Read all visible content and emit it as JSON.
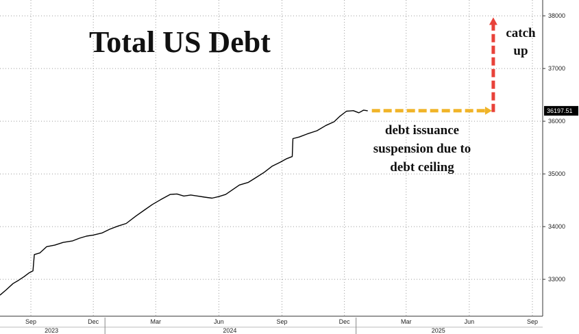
{
  "chart_data": {
    "type": "line",
    "title": "Total US Debt",
    "xlabel": "",
    "ylabel": "",
    "x_ticks": [
      "Sep",
      "Dec",
      "Mar",
      "Jun",
      "Sep",
      "Dec",
      "Mar",
      "Jun",
      "Sep"
    ],
    "years": [
      "2023",
      "2024",
      "2025"
    ],
    "y_ticks": [
      33000,
      34000,
      35000,
      36000,
      37000,
      38000
    ],
    "ylim": [
      32300,
      38300
    ],
    "xlim": [
      "2023-08-01",
      "2025-09-30"
    ],
    "grid": true,
    "y_axis_side": "right",
    "last_value_label": "36197.51",
    "series": [
      {
        "color": "#000000",
        "points": [
          [
            "2023-08-01",
            32700
          ],
          [
            "2023-08-10",
            32800
          ],
          [
            "2023-08-20",
            32920
          ],
          [
            "2023-08-28",
            32980
          ],
          [
            "2023-09-05",
            33050
          ],
          [
            "2023-09-12",
            33120
          ],
          [
            "2023-09-18",
            33160
          ],
          [
            "2023-09-20",
            33470
          ],
          [
            "2023-09-28",
            33500
          ],
          [
            "2023-10-08",
            33620
          ],
          [
            "2023-10-20",
            33650
          ],
          [
            "2023-11-01",
            33700
          ],
          [
            "2023-11-15",
            33730
          ],
          [
            "2023-11-25",
            33780
          ],
          [
            "2023-12-05",
            33820
          ],
          [
            "2023-12-15",
            33840
          ],
          [
            "2023-12-28",
            33880
          ],
          [
            "2024-01-08",
            33950
          ],
          [
            "2024-01-20",
            34010
          ],
          [
            "2024-02-01",
            34060
          ],
          [
            "2024-02-15",
            34200
          ],
          [
            "2024-02-28",
            34320
          ],
          [
            "2024-03-10",
            34420
          ],
          [
            "2024-03-22",
            34510
          ],
          [
            "2024-04-05",
            34610
          ],
          [
            "2024-04-15",
            34620
          ],
          [
            "2024-04-25",
            34580
          ],
          [
            "2024-05-05",
            34600
          ],
          [
            "2024-05-15",
            34580
          ],
          [
            "2024-05-25",
            34560
          ],
          [
            "2024-06-05",
            34540
          ],
          [
            "2024-06-15",
            34570
          ],
          [
            "2024-06-25",
            34610
          ],
          [
            "2024-07-05",
            34700
          ],
          [
            "2024-07-15",
            34790
          ],
          [
            "2024-07-28",
            34840
          ],
          [
            "2024-08-08",
            34930
          ],
          [
            "2024-08-20",
            35030
          ],
          [
            "2024-09-01",
            35150
          ],
          [
            "2024-09-12",
            35220
          ],
          [
            "2024-09-22",
            35290
          ],
          [
            "2024-09-30",
            35330
          ],
          [
            "2024-10-01",
            35670
          ],
          [
            "2024-10-10",
            35700
          ],
          [
            "2024-10-22",
            35760
          ],
          [
            "2024-11-05",
            35820
          ],
          [
            "2024-11-18",
            35920
          ],
          [
            "2024-11-30",
            35990
          ],
          [
            "2024-12-08",
            36090
          ],
          [
            "2024-12-18",
            36190
          ],
          [
            "2024-12-28",
            36200
          ],
          [
            "2025-01-05",
            36160
          ],
          [
            "2025-01-12",
            36210
          ],
          [
            "2025-01-18",
            36197.51
          ]
        ]
      }
    ],
    "annotations": {
      "suspension_lines": [
        "debt issuance",
        "suspension due to",
        "debt ceiling"
      ],
      "catch_up_lines": [
        "catch",
        "up"
      ],
      "flat_arrow": {
        "from": [
          "2025-01-20",
          36200
        ],
        "to": [
          "2025-07-20",
          36200
        ],
        "color": "#f0b429"
      },
      "up_arrow": {
        "from": [
          "2025-07-20",
          36200
        ],
        "to": [
          "2025-07-20",
          37970
        ],
        "color": "#e8423a"
      }
    },
    "colors": {
      "grid": "#9a9a9a",
      "last_label_bg": "#000000"
    }
  }
}
